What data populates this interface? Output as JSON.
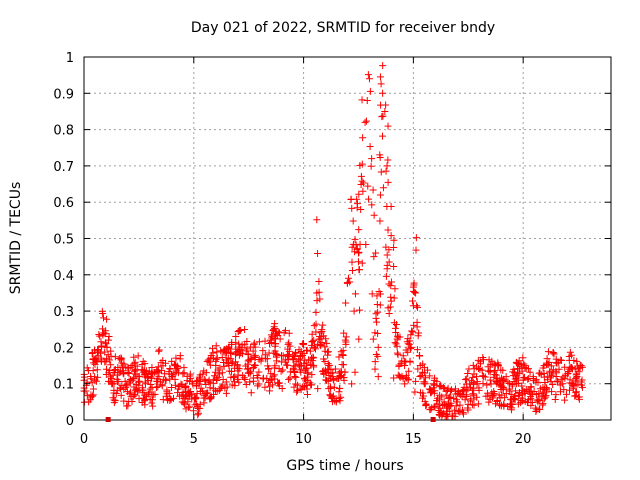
{
  "chart_data": {
    "type": "scatter",
    "title": "Day 021 of 2022, SRMTID for receiver bndy",
    "xlabel": "GPS time / hours",
    "ylabel": "SRMTID / TECUs",
    "xlim": [
      0,
      24
    ],
    "ylim": [
      0,
      1
    ],
    "xticks": [
      0,
      5,
      10,
      15,
      20
    ],
    "xtick_labels": [
      "0",
      "5",
      "10",
      "15",
      "20"
    ],
    "yticks": [
      0,
      0.1,
      0.2,
      0.3,
      0.4,
      0.5,
      0.6,
      0.7,
      0.8,
      0.9,
      1
    ],
    "ytick_labels": [
      "0",
      "0.1",
      "0.2",
      "0.3",
      "0.4",
      "0.5",
      "0.6",
      "0.7",
      "0.8",
      "0.9",
      "1"
    ],
    "grid": true,
    "marker": "+",
    "marker_color": "#ff0000",
    "series": [
      {
        "name": "SRMTID",
        "x": [
          0.0,
          0.3,
          0.6,
          0.9,
          1.0,
          1.1,
          1.3,
          1.6,
          1.9,
          2.2,
          2.5,
          2.8,
          3.1,
          3.4,
          3.7,
          4.0,
          4.3,
          4.6,
          4.9,
          5.1,
          5.4,
          5.7,
          6.0,
          6.3,
          6.6,
          6.9,
          7.2,
          7.5,
          7.8,
          8.1,
          8.4,
          8.7,
          9.0,
          9.3,
          9.6,
          9.9,
          10.2,
          10.5,
          10.6,
          10.8,
          11.1,
          11.4,
          11.7,
          11.9,
          12.1,
          12.3,
          12.5,
          12.6,
          12.7,
          12.8,
          12.9,
          13.0,
          13.1,
          13.2,
          13.3,
          13.4,
          13.5,
          13.6,
          13.7,
          13.8,
          14.0,
          14.3,
          14.6,
          14.9,
          15.1,
          15.3,
          15.5,
          15.8,
          16.1,
          16.4,
          16.7,
          17.0,
          17.3,
          17.6,
          17.9,
          18.2,
          18.5,
          18.8,
          19.1,
          19.4,
          19.7,
          20.0,
          20.3,
          20.6,
          20.9,
          21.2,
          21.5,
          21.8,
          22.1,
          22.4,
          22.7
        ],
        "y": [
          0.08,
          0.12,
          0.16,
          0.24,
          0.21,
          0.18,
          0.1,
          0.13,
          0.09,
          0.11,
          0.12,
          0.1,
          0.09,
          0.13,
          0.11,
          0.12,
          0.13,
          0.09,
          0.07,
          0.06,
          0.08,
          0.11,
          0.15,
          0.13,
          0.15,
          0.16,
          0.2,
          0.13,
          0.15,
          0.17,
          0.14,
          0.19,
          0.16,
          0.18,
          0.12,
          0.15,
          0.13,
          0.2,
          0.35,
          0.24,
          0.14,
          0.09,
          0.12,
          0.22,
          0.38,
          0.3,
          0.46,
          0.58,
          0.63,
          0.82,
          0.88,
          0.94,
          0.72,
          0.45,
          0.28,
          0.2,
          0.62,
          0.9,
          0.85,
          0.7,
          0.38,
          0.18,
          0.15,
          0.2,
          0.35,
          0.12,
          0.1,
          0.08,
          0.06,
          0.05,
          0.04,
          0.05,
          0.07,
          0.09,
          0.1,
          0.12,
          0.11,
          0.1,
          0.09,
          0.08,
          0.1,
          0.11,
          0.08,
          0.07,
          0.09,
          0.13,
          0.12,
          0.1,
          0.14,
          0.11,
          0.09
        ]
      }
    ],
    "axis_markers_x": [
      1.1,
      15.9
    ]
  }
}
